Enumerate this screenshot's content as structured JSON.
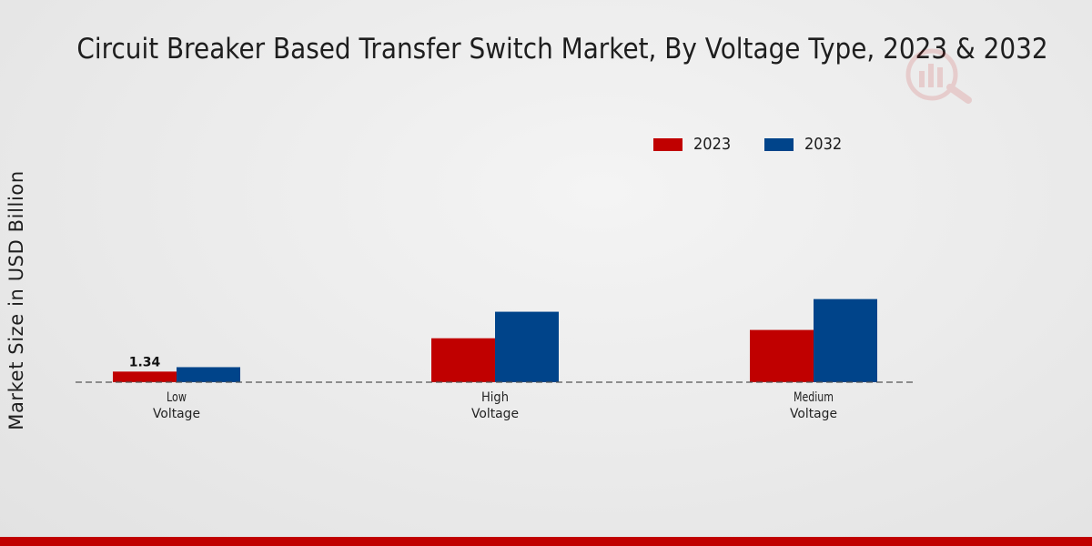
{
  "chart_data": {
    "type": "bar",
    "title": "Circuit Breaker Based Transfer Switch Market, By Voltage Type, 2023 & 2032",
    "xlabel": "",
    "ylabel": "Market Size in USD Billion",
    "categories": [
      [
        "Low",
        "Voltage"
      ],
      [
        "High",
        "Voltage"
      ],
      [
        "Medium",
        "Voltage"
      ]
    ],
    "series": [
      {
        "name": "2023",
        "color": "#c00000",
        "values": [
          1.34,
          5.55,
          6.6
        ]
      },
      {
        "name": "2032",
        "color": "#00448a",
        "values": [
          1.9,
          8.9,
          10.5
        ]
      }
    ],
    "data_labels": [
      {
        "series": 0,
        "category": 0,
        "text": "1.34"
      }
    ],
    "ylim": [
      0,
      30
    ],
    "grid": false,
    "legend_position": "top-right"
  },
  "theme": {
    "accent": "#c00000",
    "baseline_color": "#555555"
  }
}
